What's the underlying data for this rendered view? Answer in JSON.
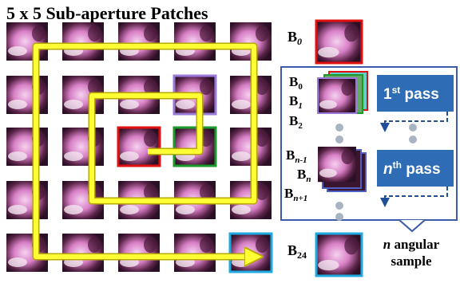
{
  "header": {
    "title": "5 x 5 Sub-aperture Patches"
  },
  "labels": {
    "b0_top": {
      "base": "B",
      "sub": "0"
    },
    "b0": {
      "base": "B",
      "sub": "0"
    },
    "b1": {
      "base": "B",
      "sub": "1"
    },
    "b2": {
      "base": "B",
      "sub": "2"
    },
    "bn_minus": {
      "base": "B",
      "sub": "n-1"
    },
    "bn": {
      "base": "B",
      "sub": "n"
    },
    "bn_plus": {
      "base": "B",
      "sub": "n+1"
    },
    "b24": {
      "base": "B",
      "sub": "24"
    }
  },
  "passes": {
    "first": {
      "pre": "1",
      "sup": "st",
      "post": " pass"
    },
    "nth": {
      "pre": "n",
      "sup": "th",
      "post": " pass"
    }
  },
  "note": {
    "var": "n",
    "line1": " angular",
    "line2": "sample"
  }
}
